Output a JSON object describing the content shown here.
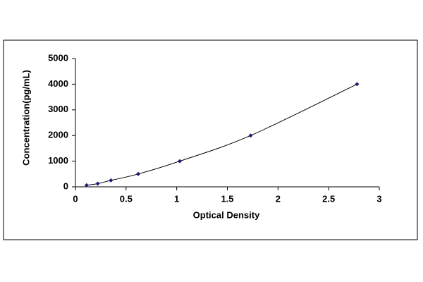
{
  "chart_data": {
    "type": "scatter",
    "x_label": "Optical Density",
    "y_label": "Concentration(pg/mL)",
    "series": [
      {
        "color": "#1c1c74",
        "x": [
          0.11,
          0.22,
          0.35,
          0.62,
          1.03,
          1.73,
          2.78
        ],
        "values": [
          62.5,
          125,
          250,
          500,
          1000,
          2000,
          4000
        ]
      }
    ],
    "trendline": true,
    "line_color": "#000000",
    "xlim": [
      0,
      3
    ],
    "xticks": [
      0,
      0.5,
      1,
      1.5,
      2,
      2.5,
      3
    ],
    "ylim": [
      0,
      5000
    ],
    "yticks": [
      0,
      1000,
      2000,
      3000,
      4000,
      5000
    ],
    "grid": false
  }
}
